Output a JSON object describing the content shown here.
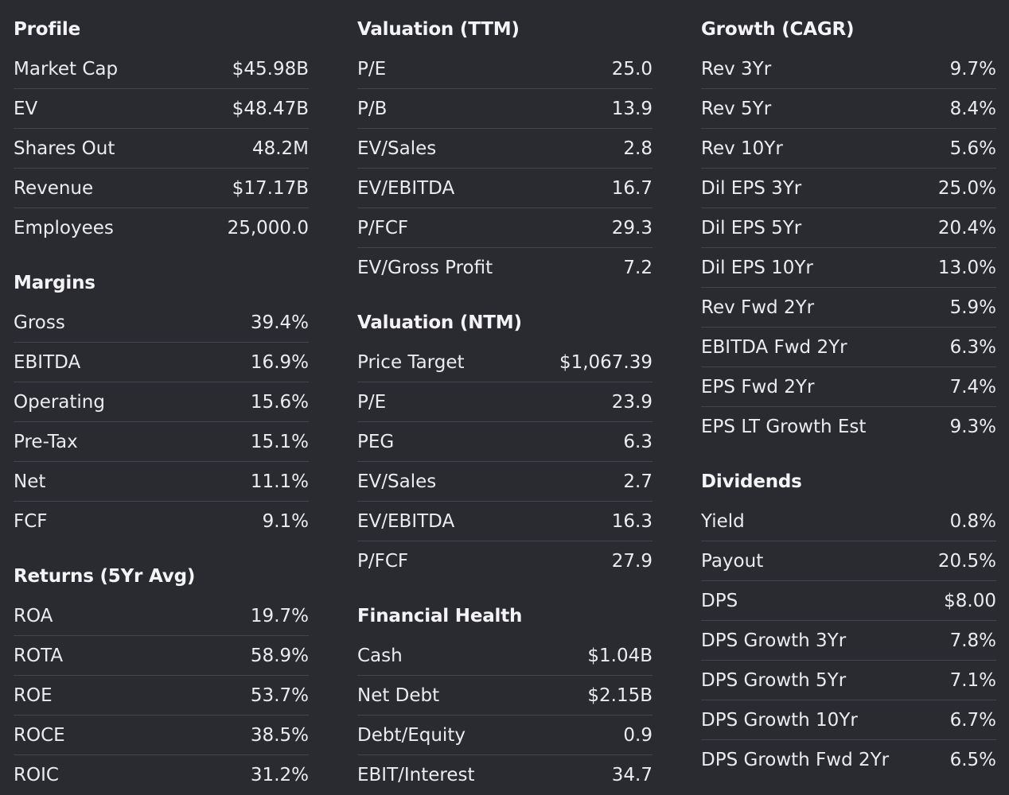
{
  "columns": [
    {
      "sections": [
        {
          "title": "Profile",
          "rows": [
            {
              "label": "Market Cap",
              "value": "$45.98B"
            },
            {
              "label": "EV",
              "value": "$48.47B"
            },
            {
              "label": "Shares Out",
              "value": "48.2M"
            },
            {
              "label": "Revenue",
              "value": "$17.17B"
            },
            {
              "label": "Employees",
              "value": "25,000.0"
            }
          ]
        },
        {
          "title": "Margins",
          "rows": [
            {
              "label": "Gross",
              "value": "39.4%"
            },
            {
              "label": "EBITDA",
              "value": "16.9%"
            },
            {
              "label": "Operating",
              "value": "15.6%"
            },
            {
              "label": "Pre-Tax",
              "value": "15.1%"
            },
            {
              "label": "Net",
              "value": "11.1%"
            },
            {
              "label": "FCF",
              "value": "9.1%"
            }
          ]
        },
        {
          "title": "Returns (5Yr Avg)",
          "rows": [
            {
              "label": "ROA",
              "value": "19.7%"
            },
            {
              "label": "ROTA",
              "value": "58.9%"
            },
            {
              "label": "ROE",
              "value": "53.7%"
            },
            {
              "label": "ROCE",
              "value": "38.5%"
            },
            {
              "label": "ROIC",
              "value": "31.2%"
            }
          ]
        }
      ]
    },
    {
      "sections": [
        {
          "title": "Valuation (TTM)",
          "rows": [
            {
              "label": "P/E",
              "value": "25.0"
            },
            {
              "label": "P/B",
              "value": "13.9"
            },
            {
              "label": "EV/Sales",
              "value": "2.8"
            },
            {
              "label": "EV/EBITDA",
              "value": "16.7"
            },
            {
              "label": "P/FCF",
              "value": "29.3"
            },
            {
              "label": "EV/Gross Profit",
              "value": "7.2"
            }
          ]
        },
        {
          "title": "Valuation (NTM)",
          "rows": [
            {
              "label": "Price Target",
              "value": "$1,067.39"
            },
            {
              "label": "P/E",
              "value": "23.9"
            },
            {
              "label": "PEG",
              "value": "6.3"
            },
            {
              "label": "EV/Sales",
              "value": "2.7"
            },
            {
              "label": "EV/EBITDA",
              "value": "16.3"
            },
            {
              "label": "P/FCF",
              "value": "27.9"
            }
          ]
        },
        {
          "title": "Financial Health",
          "rows": [
            {
              "label": "Cash",
              "value": "$1.04B"
            },
            {
              "label": "Net Debt",
              "value": "$2.15B"
            },
            {
              "label": "Debt/Equity",
              "value": "0.9"
            },
            {
              "label": "EBIT/Interest",
              "value": "34.7"
            }
          ]
        }
      ]
    },
    {
      "sections": [
        {
          "title": "Growth (CAGR)",
          "rows": [
            {
              "label": "Rev 3Yr",
              "value": "9.7%"
            },
            {
              "label": "Rev 5Yr",
              "value": "8.4%"
            },
            {
              "label": "Rev 10Yr",
              "value": "5.6%"
            },
            {
              "label": "Dil EPS 3Yr",
              "value": "25.0%"
            },
            {
              "label": "Dil EPS 5Yr",
              "value": "20.4%"
            },
            {
              "label": "Dil EPS 10Yr",
              "value": "13.0%"
            },
            {
              "label": "Rev Fwd 2Yr",
              "value": "5.9%"
            },
            {
              "label": "EBITDA Fwd 2Yr",
              "value": "6.3%"
            },
            {
              "label": "EPS Fwd 2Yr",
              "value": "7.4%"
            },
            {
              "label": "EPS LT Growth Est",
              "value": "9.3%"
            }
          ]
        },
        {
          "title": "Dividends",
          "rows": [
            {
              "label": "Yield",
              "value": "0.8%"
            },
            {
              "label": "Payout",
              "value": "20.5%"
            },
            {
              "label": "DPS",
              "value": "$8.00"
            },
            {
              "label": "DPS Growth 3Yr",
              "value": "7.8%"
            },
            {
              "label": "DPS Growth 5Yr",
              "value": "7.1%"
            },
            {
              "label": "DPS Growth 10Yr",
              "value": "6.7%"
            },
            {
              "label": "DPS Growth Fwd 2Yr",
              "value": "6.5%"
            }
          ]
        }
      ]
    }
  ]
}
